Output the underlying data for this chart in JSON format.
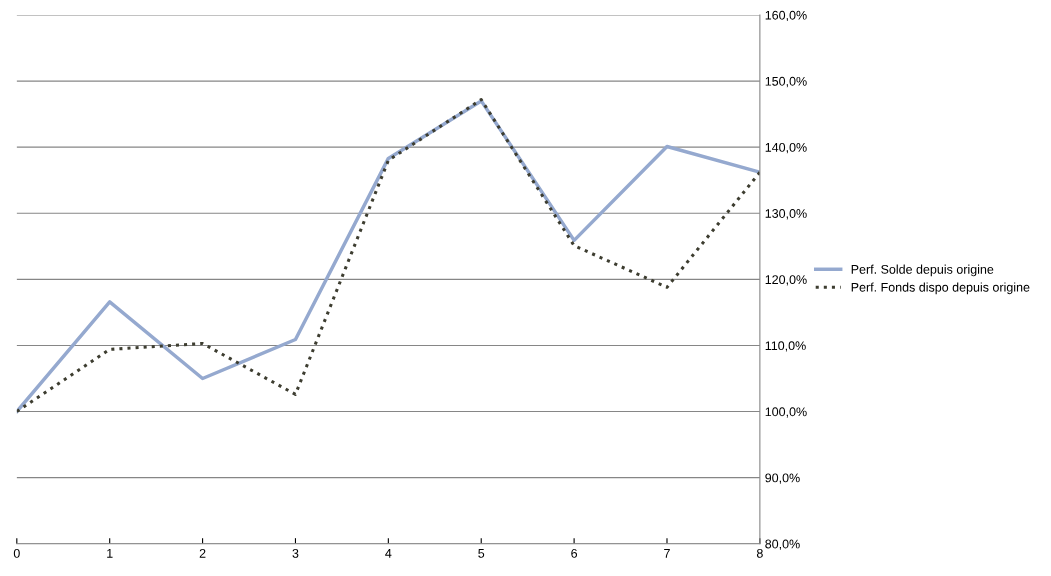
{
  "chart_data": {
    "type": "line",
    "x": [
      0,
      1,
      2,
      3,
      4,
      5,
      6,
      7,
      8
    ],
    "series": [
      {
        "name": "Perf. Solde depuis origine",
        "color": "#95a9cf",
        "line_style": "solid",
        "values": [
          100.0,
          116.6,
          105.0,
          110.9,
          138.3,
          147.0,
          125.9,
          140.1,
          136.2
        ]
      },
      {
        "name": "Perf. Fonds dispo depuis origine",
        "color": "#3d3d30",
        "line_style": "dotted",
        "values": [
          100.0,
          109.4,
          110.3,
          102.6,
          138.0,
          147.2,
          125.1,
          118.8,
          136.2
        ]
      }
    ],
    "xlim": [
      0,
      8
    ],
    "xticks": [
      0,
      1,
      2,
      3,
      4,
      5,
      6,
      7,
      8
    ],
    "ylim": [
      80,
      160
    ],
    "yticks": [
      {
        "value": 80,
        "label": "80,0%"
      },
      {
        "value": 90,
        "label": "90,0%"
      },
      {
        "value": 100,
        "label": "100,0%"
      },
      {
        "value": 110,
        "label": "110,0%"
      },
      {
        "value": 120,
        "label": "120,0%"
      },
      {
        "value": 130,
        "label": "130,0%"
      },
      {
        "value": 140,
        "label": "140,0%"
      },
      {
        "value": 150,
        "label": "150,0%"
      },
      {
        "value": 160,
        "label": "160,0%"
      }
    ],
    "grid": "y",
    "legend": "right",
    "marker": "none"
  }
}
